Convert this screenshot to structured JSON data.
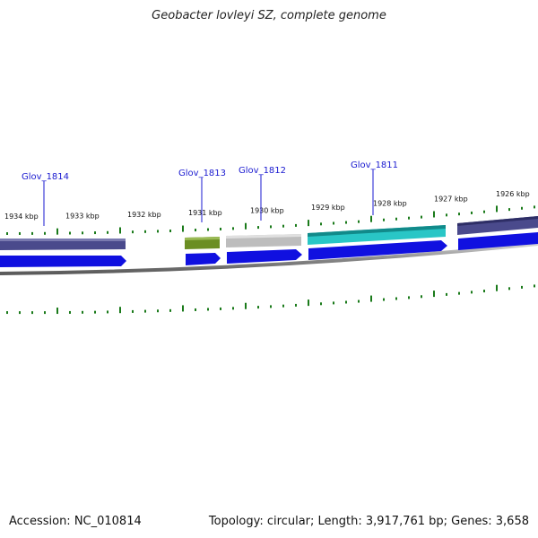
{
  "title": "Geobacter lovleyi SZ, complete genome",
  "footer": {
    "accession": "Accession: NC_010814",
    "summary": "Topology: circular; Length: 3,917,761 bp; Genes: 3,658"
  },
  "scale_labels": [
    "1934 kbp",
    "1933 kbp",
    "1932 kbp",
    "1931 kbp",
    "1930 kbp",
    "1929 kbp",
    "1928 kbp",
    "1927 kbp",
    "1926 kbp"
  ],
  "genes": [
    {
      "name": "Glov_1814",
      "strand": "-",
      "color": "#4a4a8c"
    },
    {
      "name": "Glov_1813",
      "strand": "-",
      "color": "#6b8e23"
    },
    {
      "name": "Glov_1812",
      "strand": "-",
      "color": "#bdbdbd"
    },
    {
      "name": "Glov_1811",
      "strand": "-",
      "color": "#29c6c6"
    },
    {
      "name": "",
      "strand": "-",
      "color": "#4a4a8c"
    }
  ],
  "colors": {
    "cds_forward": "#1010e0",
    "backbone": "#8a8a8a",
    "tick": "#1a7a1a",
    "label": "#1a1ad0"
  }
}
